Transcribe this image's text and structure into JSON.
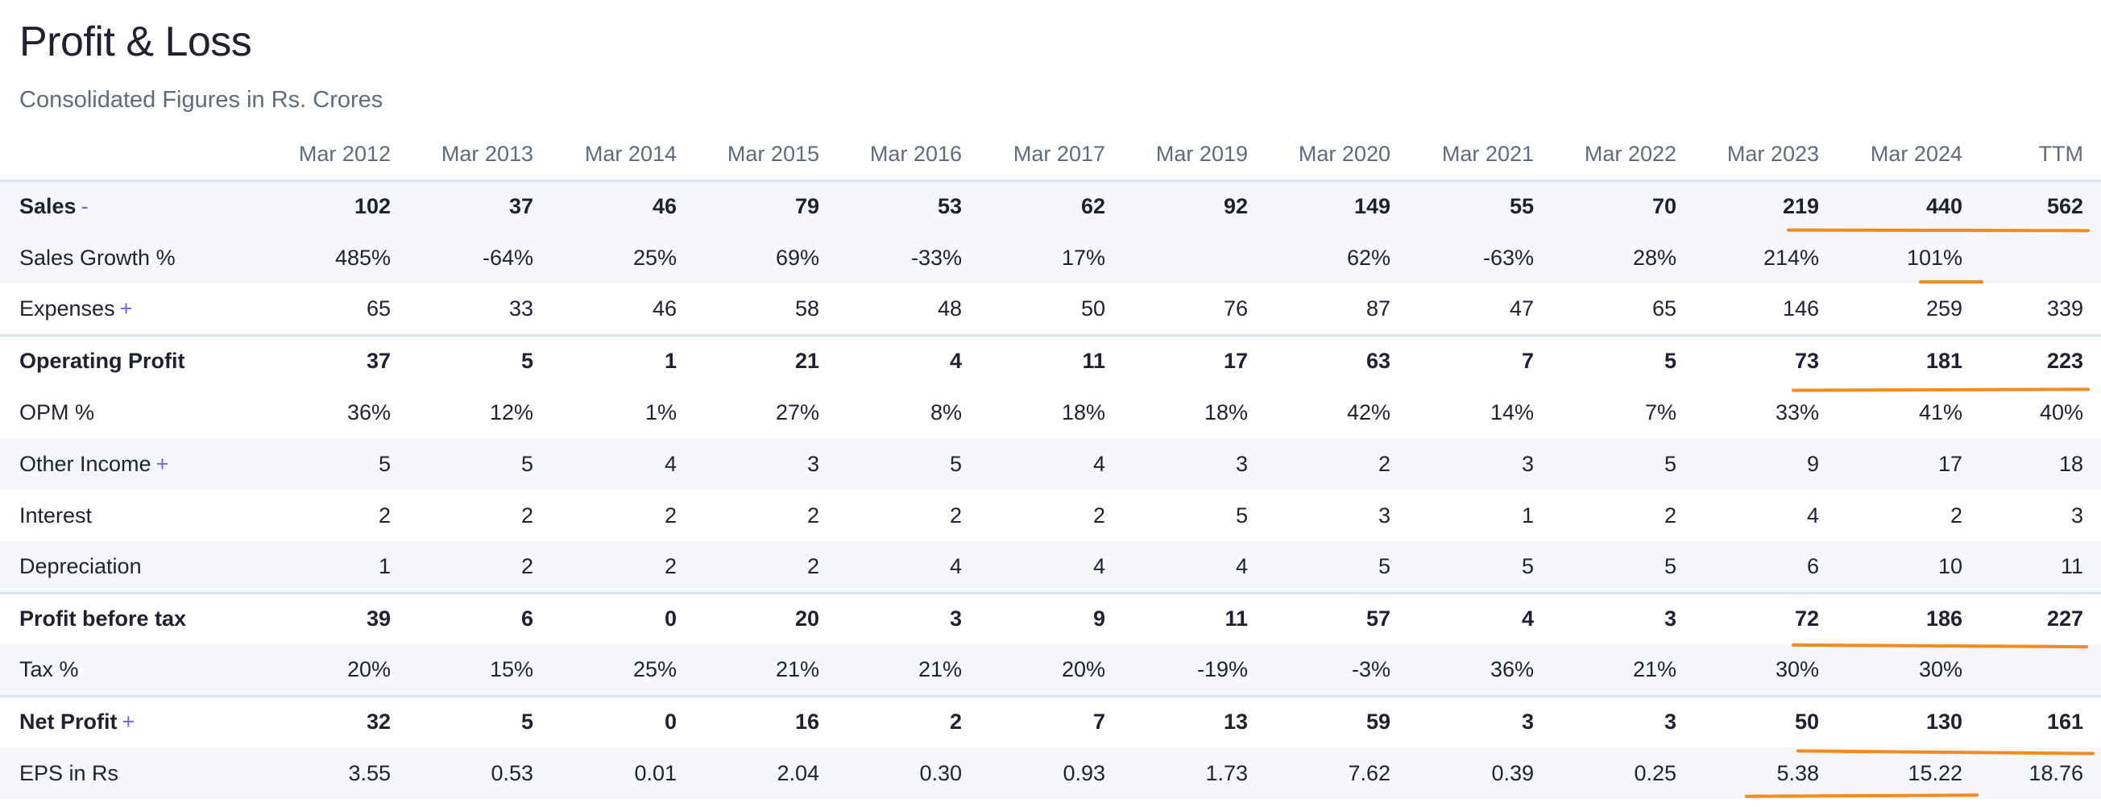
{
  "title": "Profit & Loss",
  "subtitle": "Consolidated Figures in Rs. Crores",
  "columns": [
    "Mar 2012",
    "Mar 2013",
    "Mar 2014",
    "Mar 2015",
    "Mar 2016",
    "Mar 2017",
    "Mar 2019",
    "Mar 2020",
    "Mar 2021",
    "Mar 2022",
    "Mar 2023",
    "Mar 2024",
    "TTM"
  ],
  "rows": [
    {
      "label": "Sales",
      "toggle": "-",
      "values": [
        "102",
        "37",
        "46",
        "79",
        "53",
        "62",
        "92",
        "149",
        "55",
        "70",
        "219",
        "440",
        "562"
      ]
    },
    {
      "label": "Sales Growth %",
      "values": [
        "485%",
        "-64%",
        "25%",
        "69%",
        "-33%",
        "17%",
        "",
        "62%",
        "-63%",
        "28%",
        "214%",
        "101%",
        ""
      ]
    },
    {
      "label": "Expenses",
      "toggle": "+",
      "values": [
        "65",
        "33",
        "46",
        "58",
        "48",
        "50",
        "76",
        "87",
        "47",
        "65",
        "146",
        "259",
        "339"
      ]
    },
    {
      "label": "Operating Profit",
      "values": [
        "37",
        "5",
        "1",
        "21",
        "4",
        "11",
        "17",
        "63",
        "7",
        "5",
        "73",
        "181",
        "223"
      ]
    },
    {
      "label": "OPM %",
      "values": [
        "36%",
        "12%",
        "1%",
        "27%",
        "8%",
        "18%",
        "18%",
        "42%",
        "14%",
        "7%",
        "33%",
        "41%",
        "40%"
      ]
    },
    {
      "label": "Other Income",
      "toggle": "+",
      "values": [
        "5",
        "5",
        "4",
        "3",
        "5",
        "4",
        "3",
        "2",
        "3",
        "5",
        "9",
        "17",
        "18"
      ]
    },
    {
      "label": "Interest",
      "values": [
        "2",
        "2",
        "2",
        "2",
        "2",
        "2",
        "5",
        "3",
        "1",
        "2",
        "4",
        "2",
        "3"
      ]
    },
    {
      "label": "Depreciation",
      "values": [
        "1",
        "2",
        "2",
        "2",
        "4",
        "4",
        "4",
        "5",
        "5",
        "5",
        "6",
        "10",
        "11"
      ]
    },
    {
      "label": "Profit before tax",
      "values": [
        "39",
        "6",
        "0",
        "20",
        "3",
        "9",
        "11",
        "57",
        "4",
        "3",
        "72",
        "186",
        "227"
      ]
    },
    {
      "label": "Tax %",
      "values": [
        "20%",
        "15%",
        "25%",
        "21%",
        "21%",
        "20%",
        "-19%",
        "-3%",
        "36%",
        "21%",
        "30%",
        "30%",
        ""
      ]
    },
    {
      "label": "Net Profit",
      "toggle": "+",
      "values": [
        "32",
        "5",
        "0",
        "16",
        "2",
        "7",
        "13",
        "59",
        "3",
        "3",
        "50",
        "130",
        "161"
      ]
    },
    {
      "label": "EPS in Rs",
      "values": [
        "3.55",
        "0.53",
        "0.01",
        "2.04",
        "0.30",
        "0.93",
        "1.73",
        "7.62",
        "0.39",
        "0.25",
        "5.38",
        "15.22",
        "18.76"
      ]
    }
  ],
  "colors": {
    "accent": "#6f63e6",
    "highlight": "#f28a1e"
  }
}
